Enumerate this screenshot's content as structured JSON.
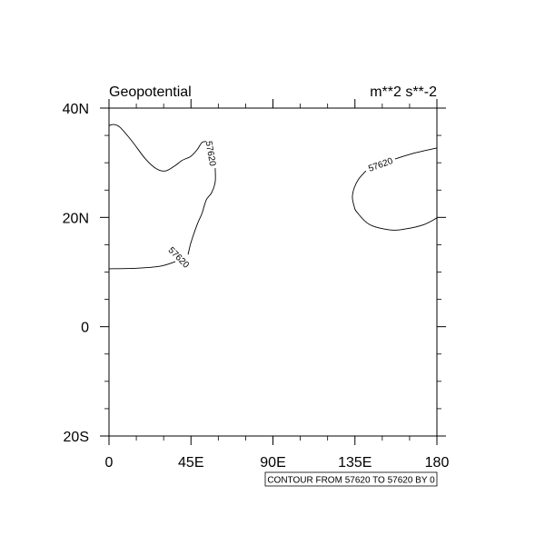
{
  "chart_data": {
    "type": "contour",
    "title_left": "Geopotential",
    "title_right": "m**2 s**-2",
    "xlim": [
      0,
      180
    ],
    "ylim": [
      -20,
      40
    ],
    "x_ticks": [
      0,
      45,
      90,
      135,
      180
    ],
    "x_tick_labels": [
      "0",
      "45E",
      "90E",
      "135E",
      "180"
    ],
    "x_minor_step": 15,
    "y_ticks": [
      -20,
      0,
      20,
      40
    ],
    "y_tick_labels": [
      "20S",
      "0",
      "20N",
      "40N"
    ],
    "y_minor_step": 5,
    "grid": false,
    "info_label": "CONTOUR FROM 57620 TO 57620 BY 0",
    "line_color": "#000000",
    "contours": [
      {
        "level": 57620,
        "segments": [
          [
            [
              0,
              36.8
            ],
            [
              2.5,
              37.0
            ],
            [
              6,
              36.5
            ],
            [
              12.5,
              34.0
            ],
            [
              20,
              30.7
            ],
            [
              26,
              28.9
            ],
            [
              31,
              28.5
            ],
            [
              36,
              29.4
            ],
            [
              40,
              30.4
            ],
            [
              45,
              31.2
            ],
            [
              48.4,
              32.4
            ],
            [
              51,
              33.7
            ],
            [
              53.4,
              33.9
            ]
          ],
          [
            [
              58.3,
              29.0
            ],
            [
              58.3,
              26.5
            ],
            [
              56.3,
              24.5
            ],
            [
              53.4,
              23.2
            ],
            [
              51,
              20.7
            ],
            [
              48.4,
              18.7
            ],
            [
              45,
              15.4
            ],
            [
              43.4,
              13.2
            ]
          ],
          [
            [
              36.4,
              11.9
            ],
            [
              28.4,
              11.1
            ],
            [
              15,
              10.7
            ],
            [
              0,
              10.6
            ]
          ]
        ],
        "labels": [
          {
            "text": "57620",
            "lon": 56,
            "lat": 31.7,
            "angle": 80
          },
          {
            "text": "57620",
            "lon": 38.4,
            "lat": 12.7,
            "angle": 45
          }
        ]
      },
      {
        "level": 57620,
        "segments": [
          [
            [
              180,
              32.7
            ],
            [
              168,
              31.8
            ],
            [
              157,
              30.7
            ]
          ],
          [
            [
              141,
              28.5
            ],
            [
              137,
              27
            ],
            [
              134.6,
              25.4
            ],
            [
              133.6,
              23.7
            ],
            [
              134.6,
              22
            ],
            [
              136,
              21
            ],
            [
              143,
              18.7
            ],
            [
              154.6,
              17.7
            ],
            [
              163,
              17.9
            ],
            [
              173,
              18.7
            ],
            [
              180,
              19.9
            ]
          ]
        ],
        "labels": [
          {
            "text": "57620",
            "lon": 149,
            "lat": 29.7,
            "angle": -20
          }
        ]
      }
    ]
  }
}
